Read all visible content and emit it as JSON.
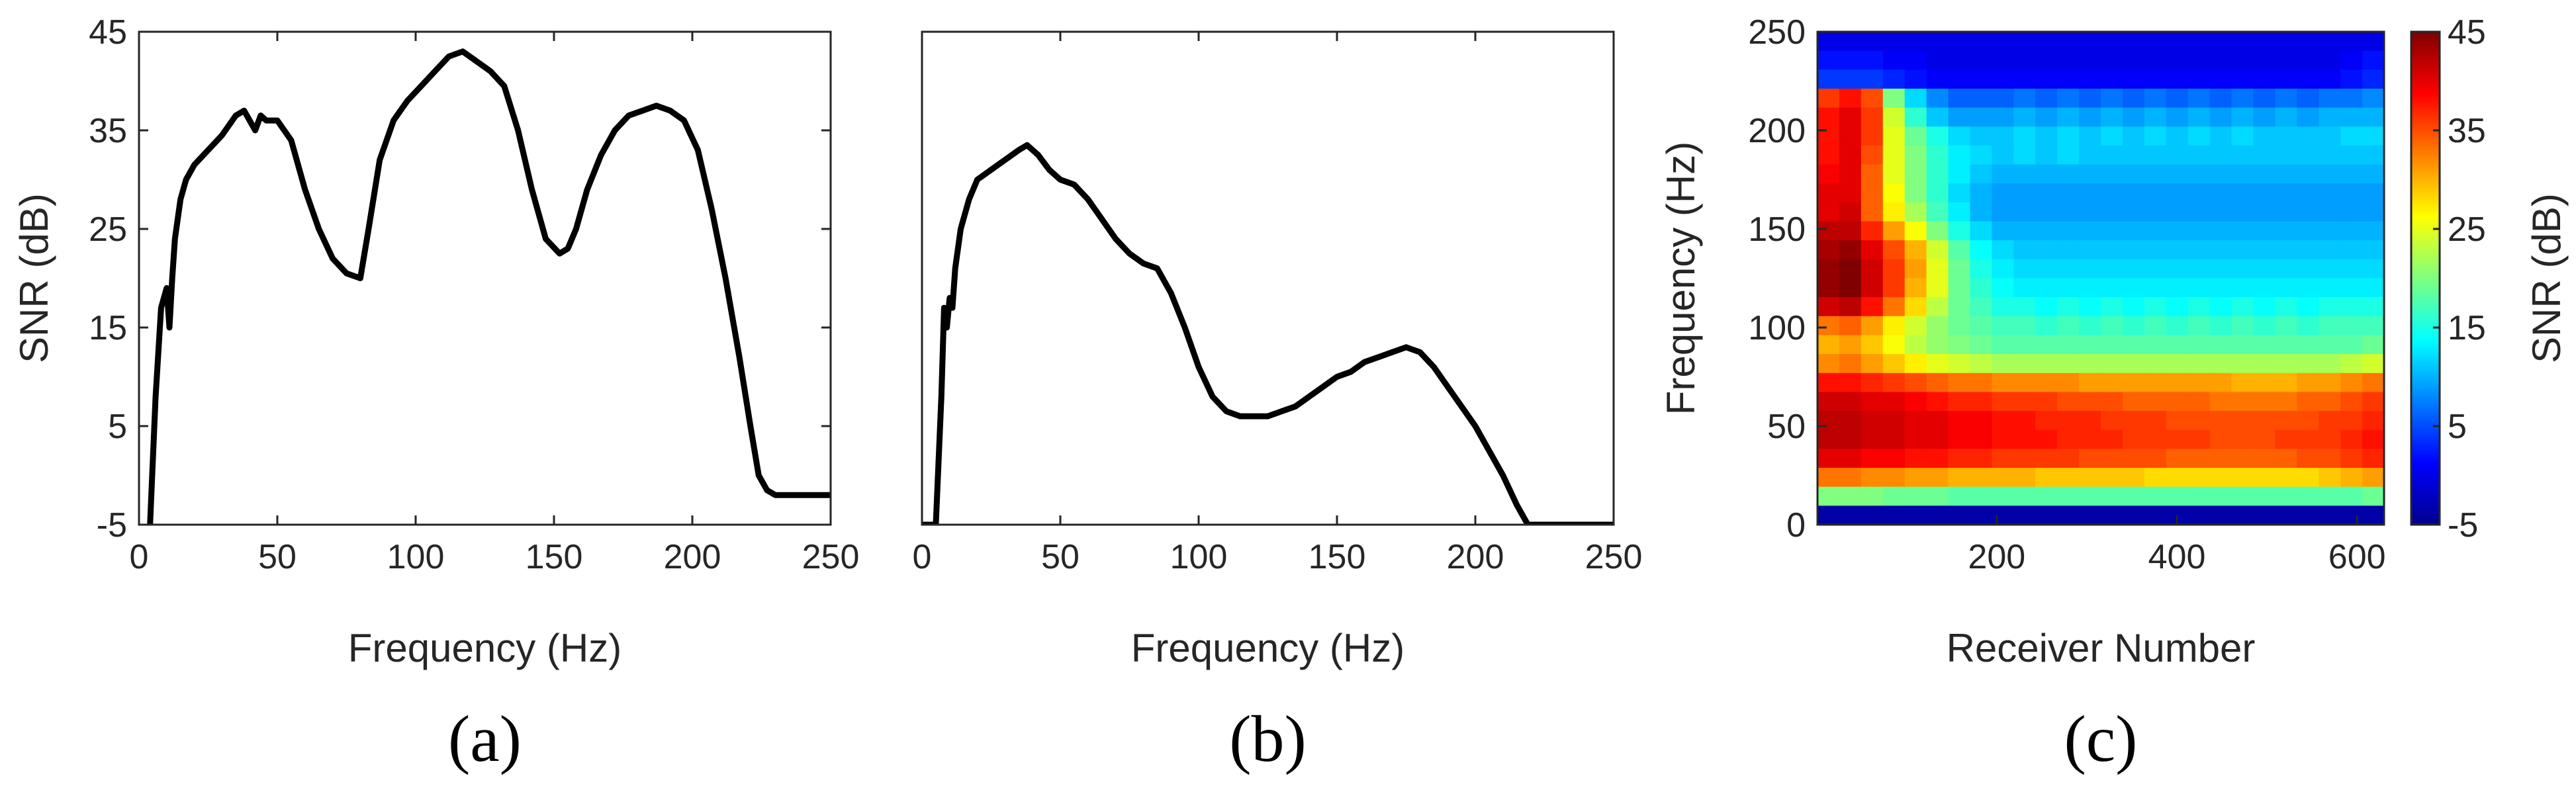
{
  "chart_data": [
    {
      "type": "line",
      "panel": "(a)",
      "xlabel": "Frequency (Hz)",
      "ylabel": "SNR (dB)",
      "xlim": [
        0,
        250
      ],
      "ylim": [
        -5,
        45
      ],
      "xticks": [
        "0",
        "50",
        "100",
        "150",
        "200",
        "250"
      ],
      "yticks": [
        "-5",
        "5",
        "15",
        "25",
        "35",
        "45"
      ],
      "x": [
        4,
        6,
        8,
        10,
        11,
        12,
        13,
        15,
        17,
        20,
        25,
        30,
        35,
        38,
        42,
        44,
        46,
        50,
        55,
        60,
        65,
        70,
        75,
        80,
        83,
        87,
        92,
        97,
        102,
        107,
        112,
        117,
        122,
        127,
        132,
        137,
        142,
        147,
        152,
        155,
        158,
        162,
        167,
        172,
        177,
        182,
        187,
        192,
        197,
        202,
        207,
        212,
        217,
        221,
        224,
        227,
        230,
        235,
        240,
        250
      ],
      "values": [
        -5,
        8,
        17,
        19,
        15,
        20,
        24,
        28,
        30,
        31.5,
        33,
        34.5,
        36.5,
        37,
        35,
        36.5,
        36,
        36,
        34,
        29,
        25,
        22,
        20.5,
        20,
        25,
        32,
        36,
        38,
        39.5,
        41,
        42.5,
        43,
        42,
        41,
        39.5,
        35,
        29,
        24,
        22.5,
        23,
        25,
        29,
        32.5,
        35,
        36.5,
        37,
        37.5,
        37,
        36,
        33,
        27,
        20,
        12,
        5,
        0,
        -1.5,
        -2,
        -2,
        -2,
        -2
      ]
    },
    {
      "type": "line",
      "panel": "(b)",
      "xlabel": "Frequency (Hz)",
      "xlim": [
        0,
        250
      ],
      "ylim": [
        -5,
        45
      ],
      "xticks": [
        "0",
        "50",
        "100",
        "150",
        "200",
        "250"
      ],
      "x": [
        0,
        5,
        7,
        8,
        9,
        10,
        11,
        12,
        14,
        17,
        20,
        25,
        30,
        35,
        38,
        42,
        46,
        50,
        55,
        60,
        65,
        70,
        75,
        80,
        85,
        90,
        95,
        100,
        105,
        110,
        115,
        120,
        125,
        130,
        135,
        140,
        145,
        150,
        155,
        160,
        165,
        170,
        175,
        180,
        185,
        190,
        195,
        200,
        205,
        210,
        215,
        219,
        225,
        250
      ],
      "values": [
        -5,
        -5,
        8,
        17,
        15,
        18,
        17,
        21,
        25,
        28,
        30,
        31,
        32,
        33,
        33.5,
        32.5,
        31,
        30,
        29.5,
        28,
        26,
        24,
        22.5,
        21.5,
        21,
        18.5,
        15,
        11,
        8,
        6.5,
        6,
        6,
        6,
        6.5,
        7,
        8,
        9,
        10,
        10.5,
        11.5,
        12,
        12.5,
        13,
        12.5,
        11,
        9,
        7,
        5,
        2.5,
        0,
        -3,
        -5,
        -5,
        -5
      ]
    },
    {
      "type": "heatmap",
      "panel": "(c)",
      "xlabel": "Receiver Number",
      "ylabel": "Frequency (Hz)",
      "xlim": [
        1,
        630
      ],
      "ylim": [
        0,
        250
      ],
      "xticks": [
        "200",
        "400",
        "600"
      ],
      "yticks": [
        "0",
        "50",
        "100",
        "150",
        "200",
        "250"
      ],
      "colorbar": {
        "label": "SNR (dB)",
        "range": [
          -5,
          45
        ],
        "ticks": [
          "-5",
          "5",
          "15",
          "25",
          "35",
          "45"
        ],
        "colormap": "jet"
      },
      "rows_hz": [
        250,
        240,
        230,
        220,
        210,
        200,
        190,
        180,
        170,
        160,
        150,
        140,
        130,
        120,
        110,
        100,
        90,
        80,
        70,
        60,
        50,
        40,
        30,
        20,
        10,
        0
      ],
      "cols_receiver": [
        1,
        26,
        51,
        76,
        101,
        126,
        151,
        176,
        201,
        226,
        251,
        276,
        301,
        326,
        351,
        376,
        401,
        426,
        451,
        476,
        501,
        526,
        551,
        576,
        601,
        626
      ],
      "snr_db": [
        [
          0,
          0,
          0,
          0,
          0,
          0,
          0,
          0,
          0,
          0,
          0,
          0,
          0,
          0,
          0,
          0,
          0,
          0,
          0,
          0,
          0,
          0,
          0,
          0,
          0,
          0
        ],
        [
          2,
          2,
          2,
          1,
          1,
          0,
          0,
          0,
          0,
          0,
          0,
          0,
          0,
          0,
          0,
          0,
          0,
          0,
          0,
          0,
          0,
          0,
          0,
          0,
          1,
          2
        ],
        [
          4,
          4,
          4,
          3,
          2,
          1,
          1,
          1,
          1,
          1,
          1,
          1,
          1,
          1,
          1,
          1,
          1,
          1,
          1,
          1,
          1,
          1,
          1,
          1,
          2,
          3
        ],
        [
          36,
          38,
          35,
          20,
          12,
          8,
          6,
          6,
          6,
          7,
          6,
          7,
          6,
          7,
          6,
          7,
          6,
          7,
          6,
          7,
          6,
          7,
          6,
          7,
          7,
          8
        ],
        [
          38,
          40,
          36,
          24,
          16,
          11,
          9,
          9,
          9,
          10,
          9,
          10,
          9,
          10,
          9,
          10,
          9,
          10,
          9,
          10,
          9,
          10,
          9,
          10,
          10,
          10
        ],
        [
          38,
          40,
          36,
          25,
          19,
          15,
          12,
          11,
          11,
          12,
          11,
          12,
          11,
          12,
          11,
          12,
          11,
          12,
          11,
          12,
          11,
          11,
          11,
          11,
          12,
          12
        ],
        [
          38,
          40,
          35,
          25,
          20,
          16,
          13,
          12,
          11,
          12,
          11,
          12,
          11,
          11,
          11,
          11,
          11,
          11,
          11,
          11,
          11,
          11,
          11,
          11,
          11,
          11
        ],
        [
          39,
          40,
          34,
          25,
          20,
          16,
          13,
          11,
          10,
          10,
          10,
          10,
          10,
          10,
          10,
          10,
          10,
          10,
          10,
          10,
          10,
          10,
          10,
          10,
          10,
          10
        ],
        [
          40,
          40,
          34,
          26,
          20,
          16,
          12,
          10,
          9,
          9,
          9,
          9,
          9,
          9,
          9,
          9,
          9,
          9,
          9,
          9,
          9,
          9,
          9,
          9,
          9,
          9
        ],
        [
          40,
          41,
          34,
          27,
          22,
          17,
          13,
          10,
          9,
          9,
          9,
          9,
          9,
          9,
          9,
          9,
          9,
          9,
          9,
          9,
          9,
          9,
          9,
          9,
          9,
          9
        ],
        [
          42,
          42,
          37,
          31,
          26,
          20,
          15,
          12,
          10,
          10,
          10,
          10,
          10,
          10,
          10,
          10,
          10,
          10,
          10,
          10,
          10,
          10,
          10,
          10,
          10,
          10
        ],
        [
          43,
          44,
          40,
          35,
          30,
          24,
          18,
          14,
          12,
          11,
          11,
          11,
          11,
          11,
          11,
          11,
          11,
          11,
          11,
          11,
          11,
          11,
          11,
          11,
          11,
          11
        ],
        [
          44,
          45,
          41,
          36,
          31,
          25,
          19,
          15,
          13,
          12,
          12,
          12,
          12,
          12,
          12,
          12,
          12,
          12,
          12,
          12,
          12,
          12,
          12,
          12,
          12,
          12
        ],
        [
          44,
          45,
          41,
          36,
          30,
          25,
          19,
          16,
          14,
          13,
          13,
          13,
          13,
          13,
          13,
          13,
          13,
          13,
          13,
          13,
          13,
          13,
          13,
          13,
          13,
          13
        ],
        [
          41,
          42,
          38,
          33,
          28,
          23,
          19,
          17,
          15,
          15,
          14,
          15,
          14,
          15,
          14,
          15,
          14,
          15,
          14,
          15,
          14,
          15,
          14,
          15,
          15,
          15
        ],
        [
          33,
          34,
          31,
          27,
          24,
          21,
          19,
          18,
          17,
          17,
          16,
          17,
          16,
          17,
          16,
          17,
          16,
          17,
          16,
          17,
          16,
          17,
          16,
          17,
          17,
          17
        ],
        [
          30,
          31,
          29,
          26,
          23,
          21,
          20,
          19,
          18,
          18,
          18,
          18,
          18,
          18,
          18,
          18,
          18,
          18,
          18,
          18,
          18,
          18,
          18,
          18,
          18,
          19
        ],
        [
          32,
          33,
          31,
          29,
          27,
          25,
          24,
          23,
          22,
          22,
          22,
          22,
          22,
          22,
          22,
          22,
          22,
          22,
          22,
          22,
          22,
          22,
          22,
          22,
          23,
          24
        ],
        [
          38,
          38,
          37,
          36,
          35,
          34,
          33,
          33,
          32,
          32,
          32,
          32,
          31,
          31,
          31,
          31,
          31,
          31,
          31,
          30,
          30,
          30,
          31,
          31,
          32,
          33
        ],
        [
          41,
          41,
          40,
          40,
          39,
          38,
          37,
          37,
          36,
          36,
          36,
          35,
          35,
          35,
          34,
          34,
          34,
          34,
          33,
          33,
          33,
          33,
          34,
          34,
          35,
          36
        ],
        [
          42,
          42,
          41,
          41,
          40,
          40,
          39,
          39,
          38,
          38,
          37,
          37,
          37,
          36,
          36,
          36,
          35,
          35,
          35,
          35,
          35,
          35,
          35,
          36,
          36,
          37
        ],
        [
          42,
          42,
          41,
          41,
          40,
          40,
          39,
          39,
          38,
          38,
          38,
          37,
          37,
          37,
          36,
          36,
          36,
          36,
          35,
          35,
          35,
          36,
          36,
          36,
          37,
          38
        ],
        [
          40,
          40,
          39,
          39,
          38,
          38,
          37,
          37,
          36,
          36,
          36,
          36,
          35,
          35,
          35,
          35,
          34,
          34,
          34,
          34,
          34,
          34,
          35,
          35,
          36,
          37
        ],
        [
          33,
          33,
          32,
          32,
          31,
          31,
          30,
          30,
          30,
          30,
          29,
          29,
          29,
          29,
          29,
          28,
          28,
          28,
          28,
          28,
          28,
          28,
          28,
          29,
          30,
          31
        ],
        [
          20,
          20,
          20,
          19,
          19,
          19,
          18,
          18,
          18,
          18,
          18,
          18,
          18,
          18,
          18,
          18,
          18,
          18,
          18,
          18,
          18,
          18,
          18,
          18,
          18,
          19
        ],
        [
          -3,
          -3,
          -3,
          -3,
          -3,
          -3,
          -3,
          -3,
          -3,
          -3,
          -3,
          -3,
          -3,
          -3,
          -3,
          -3,
          -3,
          -3,
          -3,
          -3,
          -3,
          -3,
          -3,
          -3,
          -3,
          -3
        ]
      ]
    }
  ]
}
